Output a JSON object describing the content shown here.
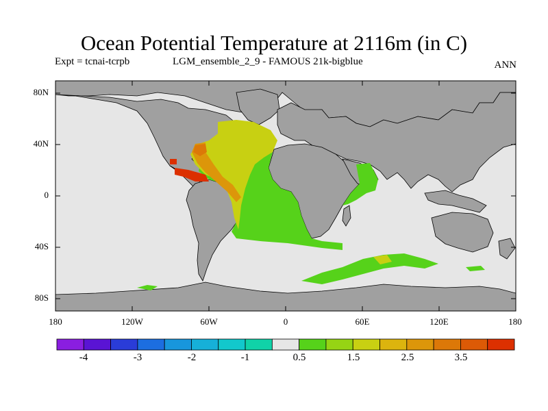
{
  "title": "Ocean Potential Temperature at 2116m (in C)",
  "experiment": "Expt = tcnai-tcrpb",
  "run_name": "LGM_ensemble_2_9 - FAMOUS 21k-bigblue",
  "season": "ANN",
  "lat_labels": [
    "80N",
    "40N",
    "0",
    "40S",
    "80S"
  ],
  "lon_labels": [
    "180",
    "120W",
    "60W",
    "0",
    "60E",
    "120E",
    "180"
  ],
  "colorbar": {
    "colors": [
      "#8a1ee0",
      "#5a14d4",
      "#2a3cd8",
      "#1c6ee0",
      "#1896dc",
      "#16b0d8",
      "#12c8cc",
      "#10d2a8",
      "#e6e6e6",
      "#56d21a",
      "#96d414",
      "#c8d012",
      "#dcb40e",
      "#dc960a",
      "#dc7808",
      "#dc5a06",
      "#dc3000"
    ],
    "labels": [
      "-4",
      "-3",
      "-2",
      "-1",
      "0.5",
      "1.5",
      "2.5",
      "3.5"
    ]
  },
  "colors": {
    "land": "#a0a0a0",
    "ocean_base": "#e6e6e6"
  }
}
